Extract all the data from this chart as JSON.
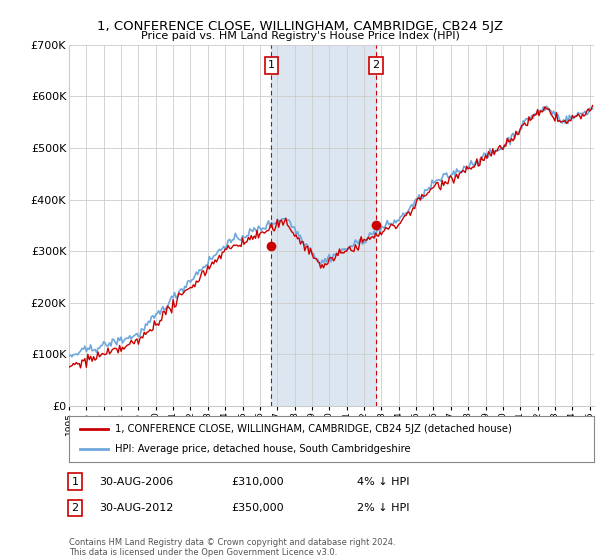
{
  "title": "1, CONFERENCE CLOSE, WILLINGHAM, CAMBRIDGE, CB24 5JZ",
  "subtitle": "Price paid vs. HM Land Registry's House Price Index (HPI)",
  "legend_line1": "1, CONFERENCE CLOSE, WILLINGHAM, CAMBRIDGE, CB24 5JZ (detached house)",
  "legend_line2": "HPI: Average price, detached house, South Cambridgeshire",
  "annotation1_label": "1",
  "annotation1_date": "30-AUG-2006",
  "annotation1_price": "£310,000",
  "annotation1_hpi": "4% ↓ HPI",
  "annotation2_label": "2",
  "annotation2_date": "30-AUG-2012",
  "annotation2_price": "£350,000",
  "annotation2_hpi": "2% ↓ HPI",
  "footer": "Contains HM Land Registry data © Crown copyright and database right 2024.\nThis data is licensed under the Open Government Licence v3.0.",
  "hpi_color": "#6fa8dc",
  "price_color": "#cc0000",
  "shaded_color": "#dce6f1",
  "background_color": "#ffffff",
  "grid_color": "#cccccc",
  "ylim": [
    0,
    700000
  ],
  "yticks": [
    0,
    100000,
    200000,
    300000,
    400000,
    500000,
    600000,
    700000
  ],
  "ytick_labels": [
    "£0",
    "£100K",
    "£200K",
    "£300K",
    "£400K",
    "£500K",
    "£600K",
    "£700K"
  ],
  "sale1_x": 2006.667,
  "sale1_y": 310000,
  "sale2_x": 2012.667,
  "sale2_y": 350000,
  "shade_x1": 2006.667,
  "shade_x2": 2012.667,
  "xmin": 1995.0,
  "xmax": 2025.25
}
